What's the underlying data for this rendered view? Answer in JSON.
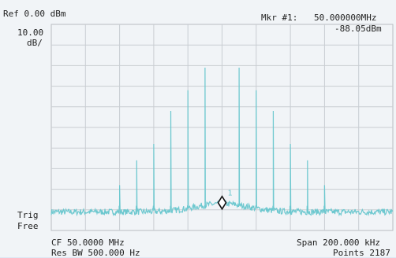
{
  "header": {
    "reference": "Ref 0.00 dBm",
    "marker_label": "Mkr #1:",
    "marker_frequency": "50.000000MHz",
    "marker_amplitude": "-88.05dBm"
  },
  "scale": {
    "value": "10.00",
    "unit": "dB/"
  },
  "trigger": {
    "label": "Trig",
    "mode": "Free"
  },
  "footer": {
    "center_frequency": "CF 50.0000 MHz",
    "resolution_bandwidth": "Res BW 500.000  Hz",
    "span": "Span  200.000 kHz",
    "points": "Points 2187"
  },
  "marker": {
    "number": "1"
  },
  "colors": {
    "trace": "#6dc8cf",
    "grid": "#c9cdd2",
    "background": "#f1f4f7",
    "frame": "#dde7f3"
  },
  "chart_data": {
    "type": "line",
    "x_unit": "kHz offset from CF",
    "xlim": [
      -100,
      100
    ],
    "ylim": [
      -100,
      0
    ],
    "grid": true,
    "noise_floor_dbm": -91,
    "spectral_lines": [
      {
        "offset_khz": -60,
        "level_dbm": -78
      },
      {
        "offset_khz": -50,
        "level_dbm": -66
      },
      {
        "offset_khz": -40,
        "level_dbm": -58
      },
      {
        "offset_khz": -30,
        "level_dbm": -42
      },
      {
        "offset_khz": -20,
        "level_dbm": -32
      },
      {
        "offset_khz": -10,
        "level_dbm": -21
      },
      {
        "offset_khz": 0,
        "level_dbm": -88
      },
      {
        "offset_khz": 10,
        "level_dbm": -21
      },
      {
        "offset_khz": 20,
        "level_dbm": -32
      },
      {
        "offset_khz": 30,
        "level_dbm": -42
      },
      {
        "offset_khz": 40,
        "level_dbm": -58
      },
      {
        "offset_khz": 50,
        "level_dbm": -66
      },
      {
        "offset_khz": 60,
        "level_dbm": -78
      }
    ],
    "marker": {
      "offset_khz": 0,
      "level_dbm": -88.05
    }
  }
}
